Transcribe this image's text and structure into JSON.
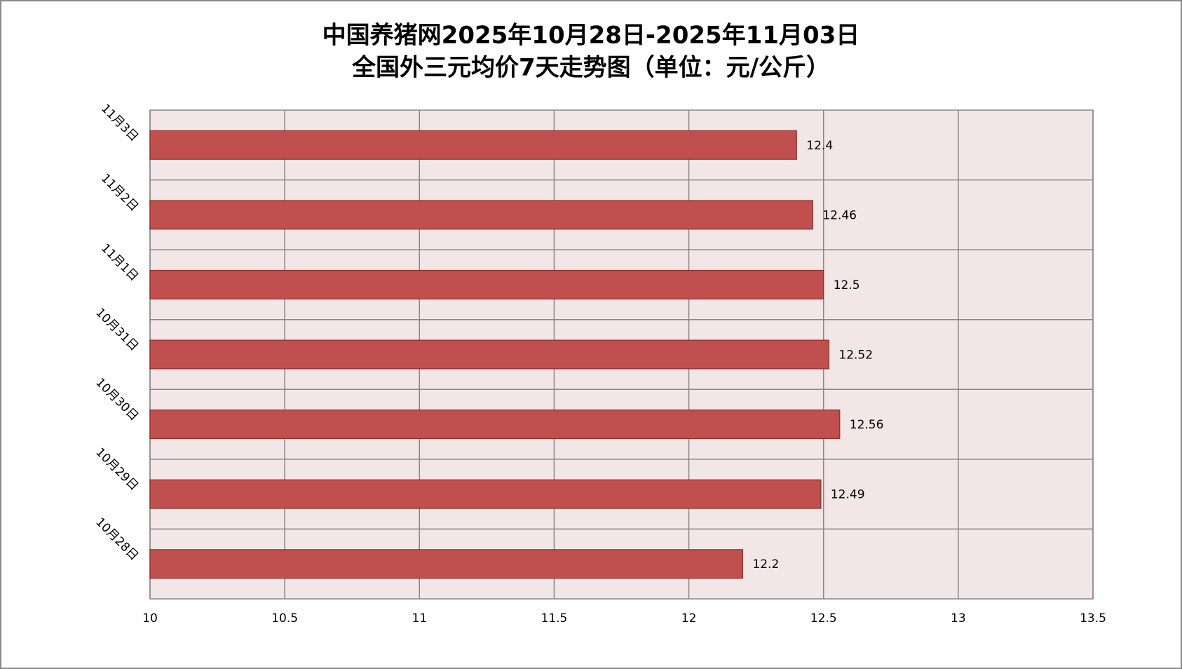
{
  "chart_data": {
    "type": "bar",
    "orientation": "horizontal",
    "title": "中国养猪网2025年10月28日-2025年11月03日",
    "subtitle": "全国外三元均价7天走势图（单位：元/公斤）",
    "categories": [
      "10月28日",
      "10月29日",
      "10月30日",
      "10月31日",
      "11月1日",
      "11月2日",
      "11月3日"
    ],
    "values": [
      12.2,
      12.49,
      12.56,
      12.52,
      12.5,
      12.46,
      12.4
    ],
    "color": "#c0504d",
    "xlim": [
      10,
      13.5
    ],
    "xticks": [
      10,
      10.5,
      11,
      11.5,
      12,
      12.5,
      13,
      13.5
    ],
    "grid": true
  }
}
